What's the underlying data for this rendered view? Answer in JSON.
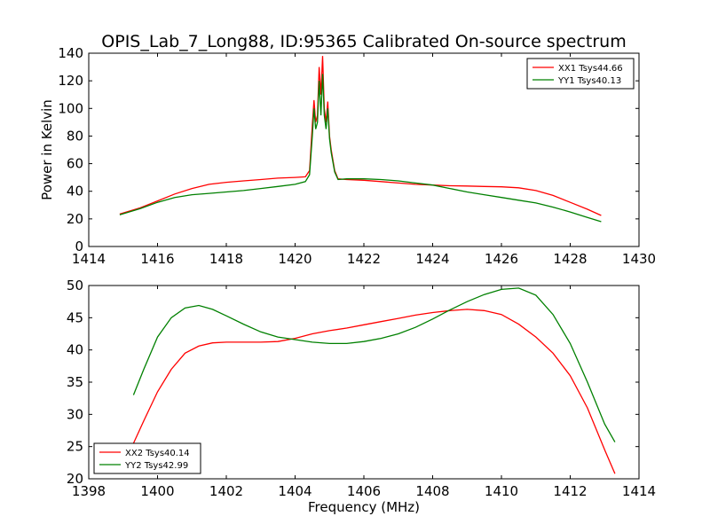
{
  "title": "OPIS_Lab_7_Long88, ID:95365 Calibrated On-source spectrum",
  "chart_data": [
    {
      "type": "line",
      "ylabel": "Power in Kelvin",
      "xlabel": "",
      "xlim": [
        1414,
        1430
      ],
      "ylim": [
        0,
        140
      ],
      "xticks": [
        "1414",
        "1416",
        "1418",
        "1420",
        "1422",
        "1424",
        "1426",
        "1428",
        "1430"
      ],
      "yticks": [
        "0",
        "20",
        "40",
        "60",
        "80",
        "100",
        "120",
        "140"
      ],
      "grid": false,
      "legend_position": "top-right",
      "series": [
        {
          "name": "XX1 Tsys44.66",
          "color": "#ff0000",
          "points": [
            [
              1414.9,
              23.5
            ],
            [
              1415.5,
              28
            ],
            [
              1416,
              33
            ],
            [
              1416.5,
              38
            ],
            [
              1417,
              42
            ],
            [
              1417.5,
              45
            ],
            [
              1418,
              46.5
            ],
            [
              1418.5,
              47.5
            ],
            [
              1419,
              48.5
            ],
            [
              1419.5,
              49.5
            ],
            [
              1420,
              50
            ],
            [
              1420.3,
              50.5
            ],
            [
              1420.42,
              55
            ],
            [
              1420.5,
              88
            ],
            [
              1420.55,
              106
            ],
            [
              1420.6,
              90
            ],
            [
              1420.65,
              95
            ],
            [
              1420.7,
              130
            ],
            [
              1420.75,
              110
            ],
            [
              1420.8,
              138
            ],
            [
              1420.85,
              100
            ],
            [
              1420.9,
              90
            ],
            [
              1420.95,
              105
            ],
            [
              1421,
              80
            ],
            [
              1421.05,
              70
            ],
            [
              1421.15,
              55
            ],
            [
              1421.25,
              49
            ],
            [
              1421.5,
              48.5
            ],
            [
              1422,
              48
            ],
            [
              1422.5,
              47
            ],
            [
              1423,
              46
            ],
            [
              1423.5,
              45
            ],
            [
              1424,
              44.5
            ],
            [
              1424.5,
              44
            ],
            [
              1425,
              43.8
            ],
            [
              1425.5,
              43.5
            ],
            [
              1426,
              43.2
            ],
            [
              1426.5,
              42.5
            ],
            [
              1427,
              40.5
            ],
            [
              1427.5,
              37
            ],
            [
              1428,
              32
            ],
            [
              1428.5,
              27
            ],
            [
              1428.9,
              22.5
            ]
          ]
        },
        {
          "name": "YY1 Tsys40.13",
          "color": "#008000",
          "points": [
            [
              1414.9,
              23
            ],
            [
              1415.5,
              27.5
            ],
            [
              1416,
              32
            ],
            [
              1416.5,
              35.5
            ],
            [
              1417,
              37.5
            ],
            [
              1417.5,
              38.5
            ],
            [
              1418,
              39.5
            ],
            [
              1418.5,
              40.5
            ],
            [
              1419,
              42
            ],
            [
              1419.5,
              43.5
            ],
            [
              1420,
              45
            ],
            [
              1420.3,
              47
            ],
            [
              1420.42,
              52
            ],
            [
              1420.5,
              80
            ],
            [
              1420.55,
              100
            ],
            [
              1420.6,
              85
            ],
            [
              1420.65,
              90
            ],
            [
              1420.7,
              120
            ],
            [
              1420.75,
              95
            ],
            [
              1420.8,
              125
            ],
            [
              1420.85,
              95
            ],
            [
              1420.9,
              85
            ],
            [
              1420.95,
              100
            ],
            [
              1421,
              78
            ],
            [
              1421.05,
              68
            ],
            [
              1421.15,
              54
            ],
            [
              1421.25,
              48.5
            ],
            [
              1421.5,
              49
            ],
            [
              1422,
              49
            ],
            [
              1422.5,
              48.5
            ],
            [
              1423,
              47.5
            ],
            [
              1423.5,
              46
            ],
            [
              1424,
              44.5
            ],
            [
              1424.5,
              42
            ],
            [
              1425,
              39.5
            ],
            [
              1425.5,
              37.5
            ],
            [
              1426,
              35.5
            ],
            [
              1426.5,
              33.5
            ],
            [
              1427,
              31.5
            ],
            [
              1427.5,
              28.5
            ],
            [
              1428,
              25
            ],
            [
              1428.5,
              21
            ],
            [
              1428.9,
              18
            ]
          ]
        }
      ]
    },
    {
      "type": "line",
      "ylabel": "",
      "xlabel": "Frequency (MHz)",
      "xlim": [
        1398,
        1414
      ],
      "ylim": [
        20,
        50
      ],
      "xticks": [
        "1398",
        "1400",
        "1402",
        "1404",
        "1406",
        "1408",
        "1410",
        "1412",
        "1414"
      ],
      "yticks": [
        "20",
        "25",
        "30",
        "35",
        "40",
        "45",
        "50"
      ],
      "grid": false,
      "legend_position": "bottom-left",
      "series": [
        {
          "name": "XX2 Tsys40.14",
          "color": "#ff0000",
          "points": [
            [
              1399.3,
              25.5
            ],
            [
              1399.6,
              29
            ],
            [
              1400,
              33.5
            ],
            [
              1400.4,
              37
            ],
            [
              1400.8,
              39.5
            ],
            [
              1401.2,
              40.6
            ],
            [
              1401.6,
              41.1
            ],
            [
              1402,
              41.2
            ],
            [
              1402.5,
              41.2
            ],
            [
              1403,
              41.2
            ],
            [
              1403.5,
              41.3
            ],
            [
              1404,
              41.8
            ],
            [
              1404.5,
              42.5
            ],
            [
              1405,
              43
            ],
            [
              1405.5,
              43.4
            ],
            [
              1406,
              43.9
            ],
            [
              1406.5,
              44.4
            ],
            [
              1407,
              44.9
            ],
            [
              1407.5,
              45.4
            ],
            [
              1408,
              45.8
            ],
            [
              1408.5,
              46.1
            ],
            [
              1409,
              46.3
            ],
            [
              1409.5,
              46.1
            ],
            [
              1410,
              45.5
            ],
            [
              1410.5,
              44
            ],
            [
              1411,
              42
            ],
            [
              1411.5,
              39.5
            ],
            [
              1412,
              36
            ],
            [
              1412.5,
              31
            ],
            [
              1413,
              24.5
            ],
            [
              1413.3,
              20.8
            ]
          ]
        },
        {
          "name": "YY2 Tsys42.99",
          "color": "#008000",
          "points": [
            [
              1399.3,
              33
            ],
            [
              1399.6,
              37
            ],
            [
              1400,
              42
            ],
            [
              1400.4,
              45
            ],
            [
              1400.8,
              46.5
            ],
            [
              1401.2,
              46.9
            ],
            [
              1401.6,
              46.3
            ],
            [
              1402,
              45.3
            ],
            [
              1402.5,
              44
            ],
            [
              1403,
              42.8
            ],
            [
              1403.5,
              42
            ],
            [
              1404,
              41.6
            ],
            [
              1404.5,
              41.2
            ],
            [
              1405,
              41
            ],
            [
              1405.5,
              41
            ],
            [
              1406,
              41.3
            ],
            [
              1406.5,
              41.8
            ],
            [
              1407,
              42.5
            ],
            [
              1407.5,
              43.5
            ],
            [
              1408,
              44.8
            ],
            [
              1408.5,
              46.2
            ],
            [
              1409,
              47.5
            ],
            [
              1409.5,
              48.6
            ],
            [
              1410,
              49.4
            ],
            [
              1410.5,
              49.6
            ],
            [
              1411,
              48.5
            ],
            [
              1411.5,
              45.5
            ],
            [
              1412,
              41
            ],
            [
              1412.5,
              35
            ],
            [
              1413,
              28.5
            ],
            [
              1413.3,
              25.7
            ]
          ]
        }
      ]
    }
  ]
}
